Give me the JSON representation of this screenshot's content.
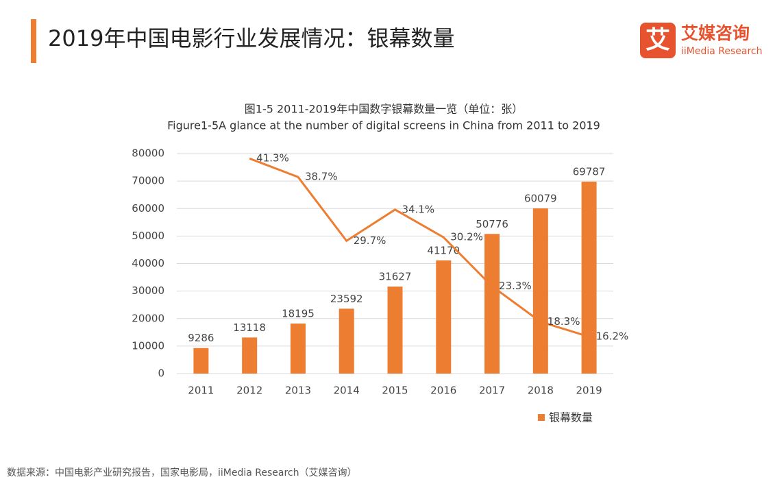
{
  "header": {
    "title": "2019年中国电影行业发展情况：银幕数量"
  },
  "logo": {
    "mark": "艾",
    "name": "艾媒咨询",
    "name_en": "iiMedia Research"
  },
  "chart_data": {
    "type": "bar",
    "title": "图1-5 2011-2019年中国数字银幕数量一览（单位：张）",
    "subtitle": "Figure1-5A glance at the number of digital screens in China from 2011 to 2019",
    "categories": [
      "2011",
      "2012",
      "2013",
      "2014",
      "2015",
      "2016",
      "2017",
      "2018",
      "2019"
    ],
    "series": [
      {
        "name": "银幕数量",
        "type": "bar",
        "color": "#ed7d31",
        "values": [
          9286,
          13118,
          18195,
          23592,
          31627,
          41170,
          50776,
          60079,
          69787
        ]
      },
      {
        "type": "line",
        "axis": "y2",
        "color": "#ed7d31",
        "values": [
          null,
          41.3,
          38.7,
          29.7,
          34.1,
          30.2,
          23.3,
          18.3,
          16.2
        ],
        "value_labels": [
          null,
          "41.3%",
          "38.7%",
          "29.7%",
          "34.1%",
          "30.2%",
          "23.3%",
          "18.3%",
          "16.2%"
        ]
      }
    ],
    "ylim": [
      0,
      80000
    ],
    "yticks": [
      0,
      10000,
      20000,
      30000,
      40000,
      50000,
      60000,
      70000,
      80000
    ],
    "y2lim": [
      11,
      42
    ],
    "grid": true,
    "legend": "bottom-right"
  },
  "source": "数据来源：中国电影产业研究报告，国家电影局，iiMedia Research（艾媒咨询）"
}
